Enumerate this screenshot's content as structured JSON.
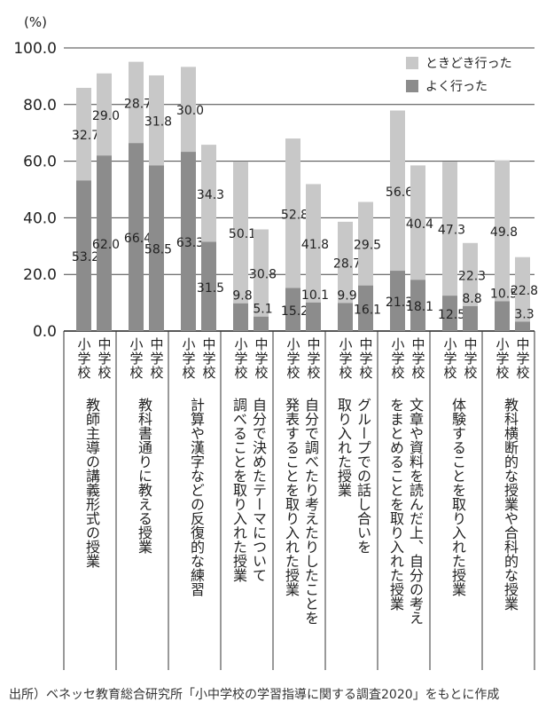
{
  "chart_data": {
    "type": "bar",
    "stacked": true,
    "unit_label": "(%)",
    "ylim": [
      0,
      100
    ],
    "yticks": [
      "100.0",
      "80.0",
      "60.0",
      "40.0",
      "20.0",
      "0.0"
    ],
    "legend_position": "top-right",
    "series": [
      {
        "name": "よく行った",
        "color": "#8c8c8c"
      },
      {
        "name": "ときどき行った",
        "color": "#c8c8c8"
      }
    ],
    "school_labels": [
      "小学校",
      "中学校"
    ],
    "categories": [
      {
        "label_lines": [
          "教師主導の講義形式の授業"
        ],
        "often": [
          53.2,
          62.0
        ],
        "sometimes": [
          32.7,
          29.0
        ]
      },
      {
        "label_lines": [
          "教科書通りに教える授業"
        ],
        "often": [
          66.4,
          58.5
        ],
        "sometimes": [
          28.7,
          31.8
        ]
      },
      {
        "label_lines": [
          "計算や漢字などの反復的な練習"
        ],
        "often": [
          63.3,
          31.5
        ],
        "sometimes": [
          30.0,
          34.3
        ]
      },
      {
        "label_lines": [
          "自分で決めたテーマについて",
          "調べることを取り入れた授業"
        ],
        "often": [
          9.8,
          5.1
        ],
        "sometimes": [
          50.1,
          30.8
        ]
      },
      {
        "label_lines": [
          "自分で調べたり考えたりしたことを",
          "発表することを取り入れた授業"
        ],
        "often": [
          15.2,
          10.1
        ],
        "sometimes": [
          52.8,
          41.8
        ]
      },
      {
        "label_lines": [
          "グループでの話し合いを",
          "取り入れた授業"
        ],
        "often": [
          9.9,
          16.1
        ],
        "sometimes": [
          28.7,
          29.5
        ]
      },
      {
        "label_lines": [
          "文章や資料を読んだ上、自分の考え",
          "をまとめることを取り入れた授業"
        ],
        "often": [
          21.3,
          18.1
        ],
        "sometimes": [
          56.6,
          40.4
        ]
      },
      {
        "label_lines": [
          "体験することを取り入れた授業"
        ],
        "often": [
          12.5,
          8.8
        ],
        "sometimes": [
          47.3,
          22.3
        ]
      },
      {
        "label_lines": [
          "教科横断的な授業や合科的な授業"
        ],
        "often": [
          10.5,
          3.3
        ],
        "sometimes": [
          49.8,
          22.8
        ]
      }
    ]
  },
  "source_note": "出所）ベネッセ教育総合研究所「小中学校の学習指導に関する調査2020」をもとに作成"
}
